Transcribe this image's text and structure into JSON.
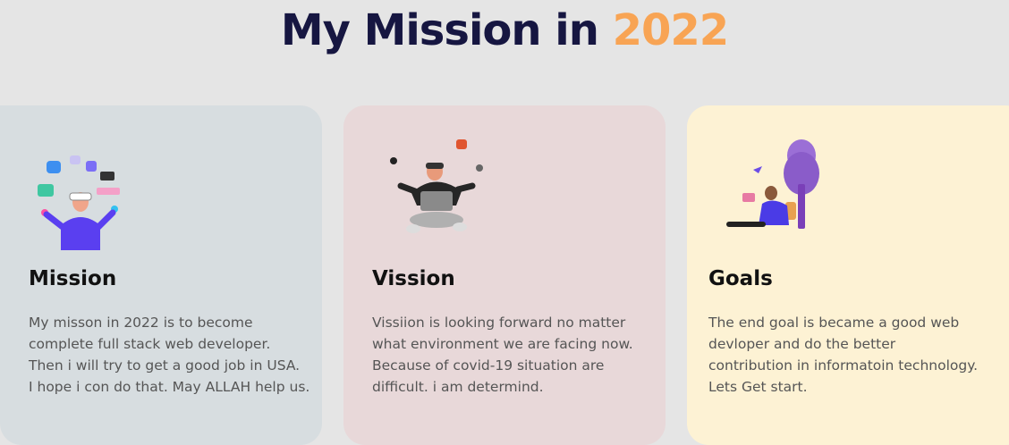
{
  "title": {
    "main": "My Mission in",
    "year": "2022"
  },
  "cards": [
    {
      "heading": "Mission",
      "lines": [
        "My misson in 2022 is to become",
        "complete full stack web developer.",
        "Then i will try to get a good job in USA.",
        "I hope i con do that. May ALLAH help us."
      ],
      "illustration": "vr-juggler-illustration",
      "color": "#d7dde0"
    },
    {
      "heading": "Vission",
      "lines": [
        "Vissiion is looking forward no matter",
        "what environment we are facing now.",
        "Because of covid-19 situation are",
        "difficult. i am determind."
      ],
      "illustration": "vr-laptop-illustration",
      "color": "#e8d8d9"
    },
    {
      "heading": "Goals",
      "lines": [
        "The end goal is became a good web",
        "devloper and do the better",
        "contribution in informatoin technology.",
        "Lets Get start."
      ],
      "illustration": "reading-under-tree-illustration",
      "color": "#fdf2d4"
    }
  ],
  "colors": {
    "title": "#161641",
    "accent": "#f8a454",
    "background": "#e5e5e5"
  }
}
